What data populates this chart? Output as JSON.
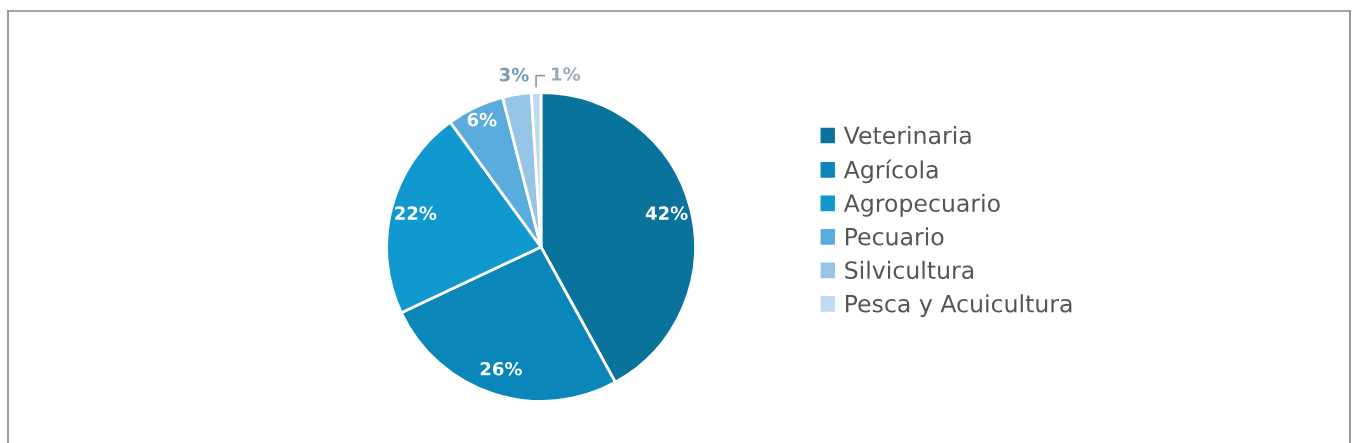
{
  "chart_data": {
    "type": "pie",
    "categories": [
      "Veterinaria",
      "Agrícola",
      "Agropecuario",
      "Pecuario",
      "Silvicultura",
      "Pesca y Acuicultura"
    ],
    "values": [
      42,
      26,
      22,
      6,
      3,
      1
    ],
    "value_labels": [
      "42%",
      "26%",
      "22%",
      "6%",
      "3%",
      "1%"
    ],
    "colors": [
      "#0a739c",
      "#0b86b8",
      "#1199cf",
      "#5aacdc",
      "#97c5e8",
      "#c0dbf1"
    ],
    "legend": "right"
  }
}
